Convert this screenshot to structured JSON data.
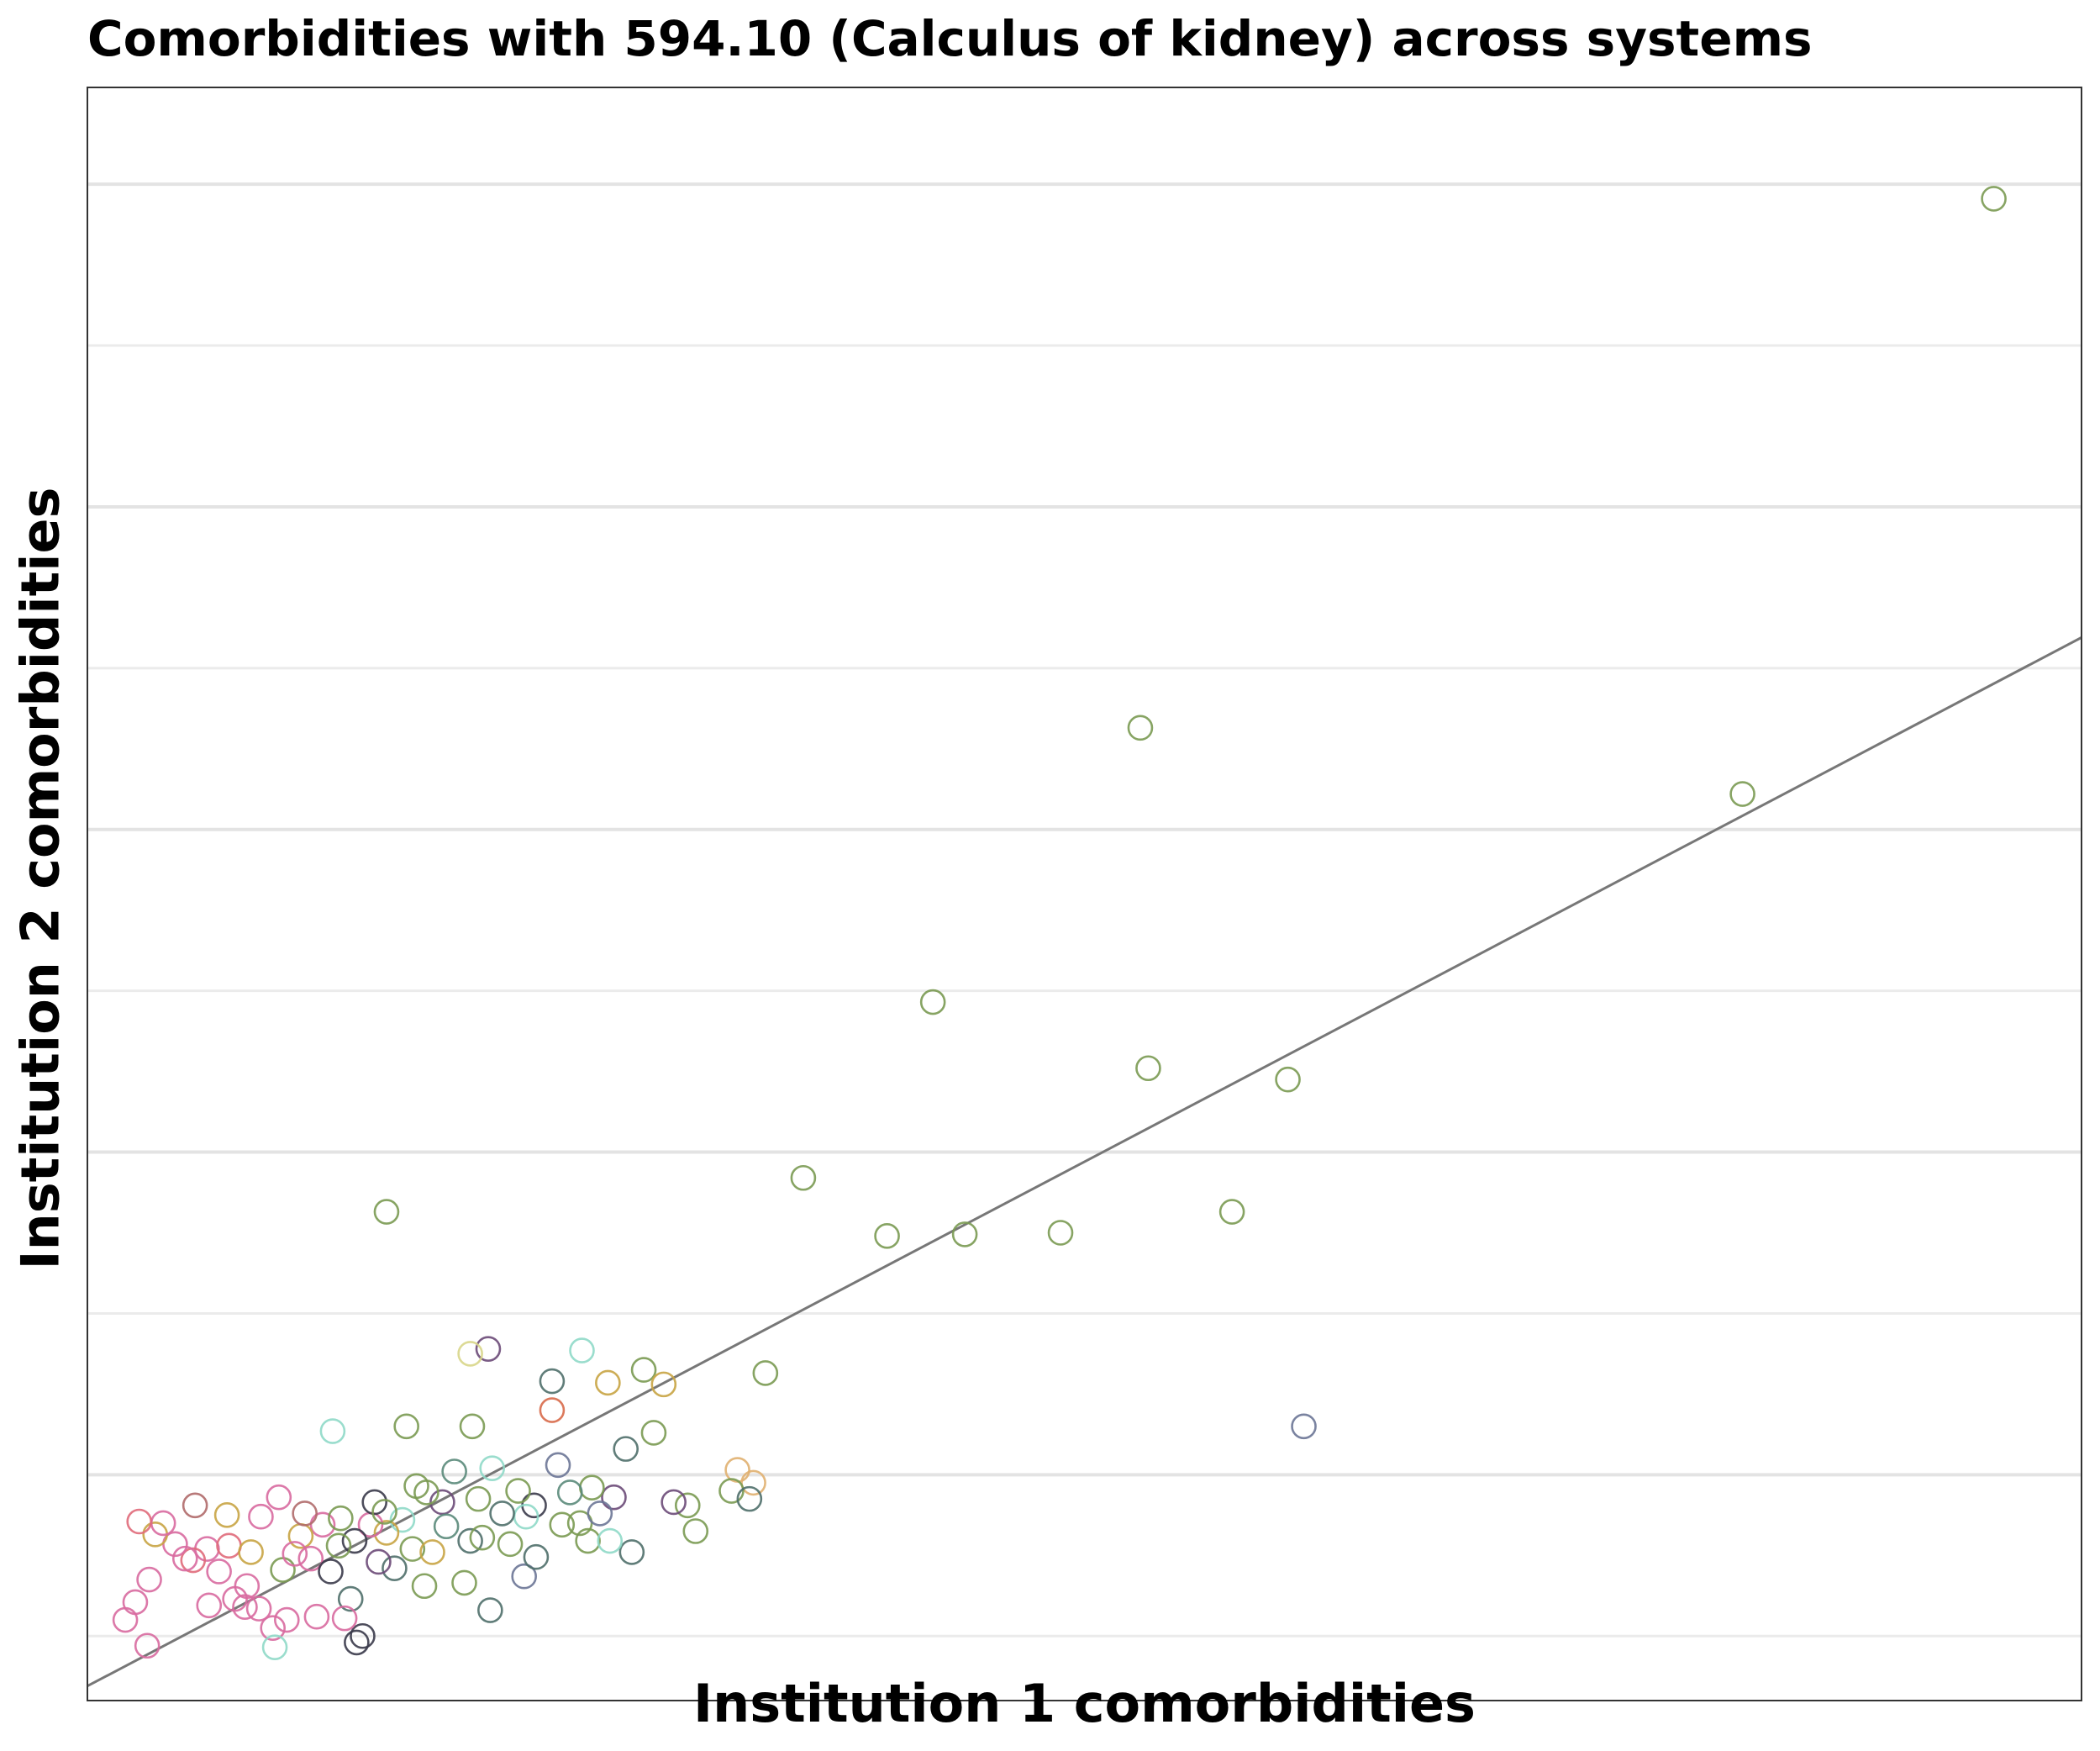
{
  "chart_data": {
    "type": "scatter",
    "title": "Comorbidities with 594.10 (Calculus of kidney) across systems",
    "xlabel": "Institution 1 comorbidities",
    "ylabel": "Institution 2 comorbidities",
    "xlim": [
      0,
      100
    ],
    "ylim": [
      0,
      100
    ],
    "grid": "horizontal",
    "legend": "none",
    "marker": "open circle",
    "reference_line": {
      "x": [
        0,
        100
      ],
      "y": [
        0.9,
        65.9
      ]
    },
    "points": [
      {
        "x": 95.6,
        "y": 93.1,
        "color": "#7a9a52"
      },
      {
        "x": 83.0,
        "y": 56.2,
        "color": "#7a9a52"
      },
      {
        "x": 52.8,
        "y": 60.3,
        "color": "#7a9a52"
      },
      {
        "x": 42.4,
        "y": 43.3,
        "color": "#7a9a52"
      },
      {
        "x": 53.2,
        "y": 39.2,
        "color": "#7a9a52"
      },
      {
        "x": 60.2,
        "y": 38.5,
        "color": "#7a9a52"
      },
      {
        "x": 35.9,
        "y": 32.4,
        "color": "#7a9a52"
      },
      {
        "x": 57.4,
        "y": 30.3,
        "color": "#7a9a52"
      },
      {
        "x": 48.8,
        "y": 29.0,
        "color": "#7a9a52"
      },
      {
        "x": 44.0,
        "y": 28.9,
        "color": "#7a9a52"
      },
      {
        "x": 40.1,
        "y": 28.8,
        "color": "#7a9a52"
      },
      {
        "x": 15.0,
        "y": 30.3,
        "color": "#7a9a52"
      },
      {
        "x": 61.0,
        "y": 17.0,
        "color": "#6c7596"
      },
      {
        "x": 20.1,
        "y": 21.8,
        "color": "#6b4a78"
      },
      {
        "x": 19.2,
        "y": 21.5,
        "color": "#d8d68a"
      },
      {
        "x": 24.8,
        "y": 21.7,
        "color": "#8fd9c8"
      },
      {
        "x": 27.9,
        "y": 20.5,
        "color": "#7a9a52"
      },
      {
        "x": 26.1,
        "y": 19.7,
        "color": "#c8a444"
      },
      {
        "x": 28.9,
        "y": 19.6,
        "color": "#c8a444"
      },
      {
        "x": 23.3,
        "y": 19.8,
        "color": "#4f6f6a"
      },
      {
        "x": 34.0,
        "y": 20.3,
        "color": "#7a9a52"
      },
      {
        "x": 23.3,
        "y": 18.0,
        "color": "#d86a4a"
      },
      {
        "x": 12.3,
        "y": 16.7,
        "color": "#8fd9c8"
      },
      {
        "x": 16.0,
        "y": 17.0,
        "color": "#7a9a52"
      },
      {
        "x": 19.3,
        "y": 17.0,
        "color": "#7a9a52"
      },
      {
        "x": 28.4,
        "y": 16.6,
        "color": "#7a9a52"
      },
      {
        "x": 27.0,
        "y": 15.6,
        "color": "#4f6f6a"
      },
      {
        "x": 32.6,
        "y": 14.3,
        "color": "#e0b070"
      },
      {
        "x": 33.4,
        "y": 13.5,
        "color": "#e0b070"
      },
      {
        "x": 32.3,
        "y": 13.0,
        "color": "#7a9a52"
      },
      {
        "x": 33.2,
        "y": 12.5,
        "color": "#4f6f6a"
      },
      {
        "x": 30.1,
        "y": 12.1,
        "color": "#7a9a52"
      },
      {
        "x": 29.4,
        "y": 12.3,
        "color": "#6b4a78"
      },
      {
        "x": 30.5,
        "y": 10.5,
        "color": "#7a9a52"
      },
      {
        "x": 27.3,
        "y": 9.2,
        "color": "#4f6f6a"
      },
      {
        "x": 26.4,
        "y": 12.6,
        "color": "#6b4a78"
      },
      {
        "x": 25.3,
        "y": 13.2,
        "color": "#7a9a52"
      },
      {
        "x": 24.2,
        "y": 12.9,
        "color": "#5a8a7a"
      },
      {
        "x": 23.6,
        "y": 14.6,
        "color": "#6c7596"
      },
      {
        "x": 24.7,
        "y": 11.0,
        "color": "#7a9a52"
      },
      {
        "x": 25.1,
        "y": 9.9,
        "color": "#7a9a52"
      },
      {
        "x": 22.4,
        "y": 12.1,
        "color": "#3a3a4a"
      },
      {
        "x": 21.6,
        "y": 13.0,
        "color": "#7a9a52"
      },
      {
        "x": 20.3,
        "y": 14.4,
        "color": "#8fd9c8"
      },
      {
        "x": 22.0,
        "y": 11.4,
        "color": "#8fd9c8"
      },
      {
        "x": 20.8,
        "y": 11.6,
        "color": "#4f6f6a"
      },
      {
        "x": 19.6,
        "y": 12.5,
        "color": "#7a9a52"
      },
      {
        "x": 18.4,
        "y": 14.2,
        "color": "#5a8a7a"
      },
      {
        "x": 17.8,
        "y": 12.3,
        "color": "#6b4a78"
      },
      {
        "x": 16.5,
        "y": 13.3,
        "color": "#7a9a52"
      },
      {
        "x": 18.0,
        "y": 10.8,
        "color": "#5a8a7a"
      },
      {
        "x": 19.2,
        "y": 9.9,
        "color": "#4f6f6a"
      },
      {
        "x": 20.2,
        "y": 5.6,
        "color": "#4f6f6a"
      },
      {
        "x": 21.9,
        "y": 7.7,
        "color": "#6c7596"
      },
      {
        "x": 22.5,
        "y": 8.9,
        "color": "#4f6f6a"
      },
      {
        "x": 18.9,
        "y": 7.3,
        "color": "#7a9a52"
      },
      {
        "x": 16.9,
        "y": 7.1,
        "color": "#7a9a52"
      },
      {
        "x": 15.4,
        "y": 8.2,
        "color": "#4f6f6a"
      },
      {
        "x": 14.6,
        "y": 8.6,
        "color": "#6b4a78"
      },
      {
        "x": 15.8,
        "y": 11.2,
        "color": "#8fd9c8"
      },
      {
        "x": 15.0,
        "y": 10.4,
        "color": "#c8a444"
      },
      {
        "x": 14.2,
        "y": 10.9,
        "color": "#d86aa0"
      },
      {
        "x": 13.4,
        "y": 9.9,
        "color": "#3a3a4a"
      },
      {
        "x": 12.6,
        "y": 9.6,
        "color": "#7a9a52"
      },
      {
        "x": 11.8,
        "y": 10.9,
        "color": "#d86aa0"
      },
      {
        "x": 10.7,
        "y": 10.2,
        "color": "#c8a444"
      },
      {
        "x": 11.2,
        "y": 8.8,
        "color": "#d86aa0"
      },
      {
        "x": 12.2,
        "y": 8.0,
        "color": "#3a3a4a"
      },
      {
        "x": 13.2,
        "y": 6.3,
        "color": "#4f6f6a"
      },
      {
        "x": 13.8,
        "y": 4.0,
        "color": "#3a3a4a"
      },
      {
        "x": 13.5,
        "y": 3.6,
        "color": "#3a3a4a"
      },
      {
        "x": 12.9,
        "y": 5.1,
        "color": "#d86aa0"
      },
      {
        "x": 11.5,
        "y": 5.2,
        "color": "#d86aa0"
      },
      {
        "x": 10.0,
        "y": 5.0,
        "color": "#d86aa0"
      },
      {
        "x": 9.3,
        "y": 4.5,
        "color": "#d86aa0"
      },
      {
        "x": 9.4,
        "y": 3.3,
        "color": "#8fd9c8"
      },
      {
        "x": 8.6,
        "y": 5.7,
        "color": "#d86aa0"
      },
      {
        "x": 8.0,
        "y": 7.1,
        "color": "#d86aa0"
      },
      {
        "x": 7.4,
        "y": 6.3,
        "color": "#d86aa0"
      },
      {
        "x": 6.6,
        "y": 8.0,
        "color": "#d86aa0"
      },
      {
        "x": 6.0,
        "y": 9.4,
        "color": "#d86aa0"
      },
      {
        "x": 5.3,
        "y": 8.7,
        "color": "#e06a7a"
      },
      {
        "x": 7.1,
        "y": 9.6,
        "color": "#e06a7a"
      },
      {
        "x": 8.2,
        "y": 9.2,
        "color": "#c8a444"
      },
      {
        "x": 9.8,
        "y": 8.1,
        "color": "#7a9a52"
      },
      {
        "x": 10.4,
        "y": 9.1,
        "color": "#d86aa0"
      },
      {
        "x": 4.4,
        "y": 9.7,
        "color": "#d86aa0"
      },
      {
        "x": 3.4,
        "y": 10.3,
        "color": "#c8a444"
      },
      {
        "x": 3.8,
        "y": 11.0,
        "color": "#d86aa0"
      },
      {
        "x": 2.6,
        "y": 11.1,
        "color": "#e06a7a"
      },
      {
        "x": 5.4,
        "y": 12.1,
        "color": "#b06a6a"
      },
      {
        "x": 7.0,
        "y": 11.5,
        "color": "#c8a444"
      },
      {
        "x": 8.7,
        "y": 11.4,
        "color": "#d86aa0"
      },
      {
        "x": 9.6,
        "y": 12.6,
        "color": "#d86aa0"
      },
      {
        "x": 10.9,
        "y": 11.6,
        "color": "#b06a6a"
      },
      {
        "x": 12.7,
        "y": 11.3,
        "color": "#7a9a52"
      },
      {
        "x": 14.4,
        "y": 12.3,
        "color": "#3a3a4a"
      },
      {
        "x": 4.9,
        "y": 8.8,
        "color": "#d86aa0"
      },
      {
        "x": 3.1,
        "y": 7.5,
        "color": "#d86aa0"
      },
      {
        "x": 2.4,
        "y": 6.1,
        "color": "#d86aa0"
      },
      {
        "x": 1.9,
        "y": 5.0,
        "color": "#d86aa0"
      },
      {
        "x": 3.0,
        "y": 3.4,
        "color": "#d86aa0"
      },
      {
        "x": 6.1,
        "y": 5.9,
        "color": "#d86aa0"
      },
      {
        "x": 7.9,
        "y": 5.8,
        "color": "#d86aa0"
      },
      {
        "x": 16.3,
        "y": 9.4,
        "color": "#7a9a52"
      },
      {
        "x": 17.3,
        "y": 9.2,
        "color": "#c8a444"
      },
      {
        "x": 21.2,
        "y": 9.7,
        "color": "#7a9a52"
      },
      {
        "x": 23.8,
        "y": 10.9,
        "color": "#7a9a52"
      },
      {
        "x": 26.2,
        "y": 9.9,
        "color": "#8fd9c8"
      },
      {
        "x": 25.7,
        "y": 11.6,
        "color": "#6c7596"
      },
      {
        "x": 17.0,
        "y": 12.9,
        "color": "#7a9a52"
      },
      {
        "x": 19.8,
        "y": 10.1,
        "color": "#7a9a52"
      },
      {
        "x": 14.9,
        "y": 11.7,
        "color": "#7a9a52"
      }
    ]
  }
}
